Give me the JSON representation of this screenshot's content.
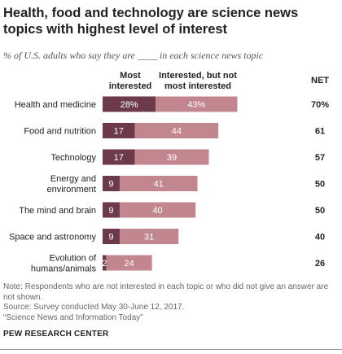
{
  "title": "Health, food and technology are science news topics with highest level of interest",
  "subtitle": "% of U.S. adults who say they are ____ in each science news topic",
  "chart_data": {
    "type": "bar",
    "stacked": true,
    "orientation": "horizontal",
    "categories": [
      "Health and medicine",
      "Food and nutrition",
      "Technology",
      "Energy and environment",
      "The mind and brain",
      "Space and astronomy",
      "Evolution of humans/animals"
    ],
    "category_lines": [
      [
        "Health and medicine"
      ],
      [
        "Food and nutrition"
      ],
      [
        "Technology"
      ],
      [
        "Energy and",
        "environment"
      ],
      [
        "The mind and brain"
      ],
      [
        "Space and astronomy"
      ],
      [
        "Evolution of",
        "humans/animals"
      ]
    ],
    "series": [
      {
        "name": "Most interested",
        "values": [
          28,
          17,
          17,
          9,
          9,
          9,
          2
        ],
        "labels": [
          "28%",
          "17",
          "17",
          "9",
          "9",
          "9",
          "2"
        ],
        "color": "#6d3a4c"
      },
      {
        "name": "Interested, but not most interested",
        "values": [
          43,
          44,
          39,
          41,
          40,
          31,
          24
        ],
        "labels": [
          "43%",
          "44",
          "39",
          "41",
          "40",
          "31",
          "24"
        ],
        "color": "#c2868f"
      }
    ],
    "series_header_lines": [
      [
        "Most",
        "interested"
      ],
      [
        "Interested, but not",
        "most interested"
      ]
    ],
    "net": {
      "header": "NET",
      "values": [
        "70%",
        "61",
        "57",
        "50",
        "50",
        "40",
        "26"
      ]
    }
  },
  "notes": [
    "Note: Respondents who are not interested in each topic or who did not give an answer are not shown.",
    "Source: Survey conducted May 30-June 12, 2017.",
    "“Science News and Information Today”"
  ],
  "brand": "PEW RESEARCH CENTER"
}
